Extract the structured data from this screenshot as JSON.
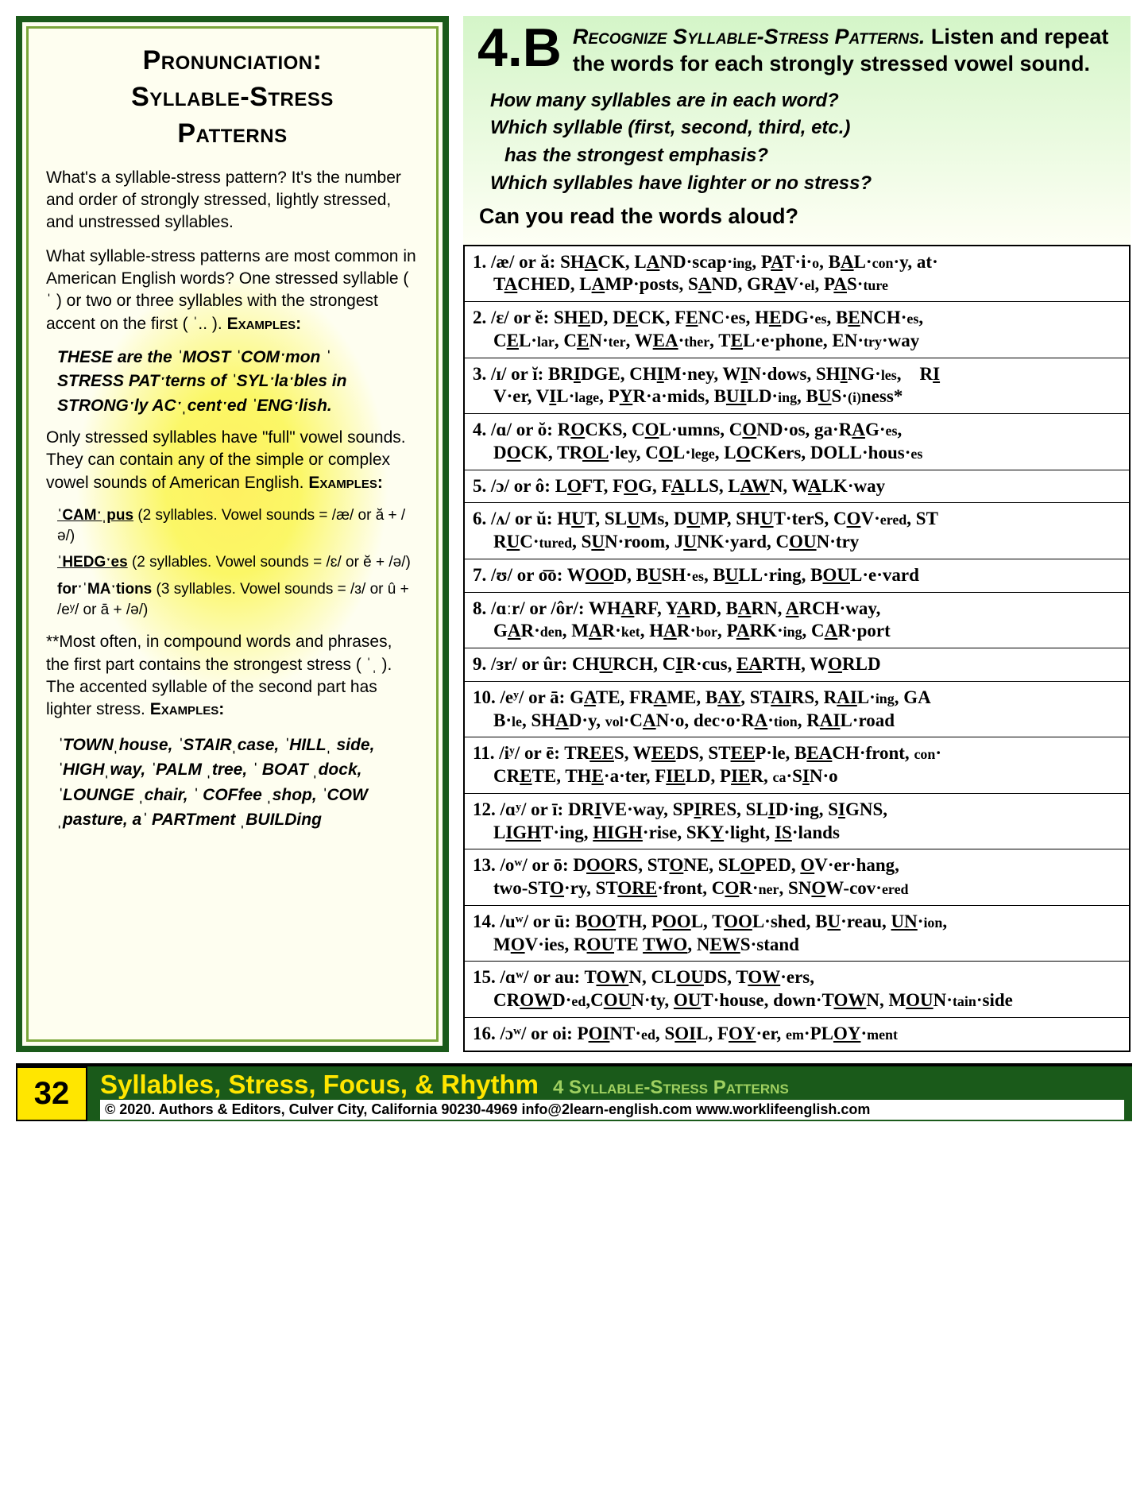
{
  "left": {
    "title_l1": "Pronunciation:",
    "title_l2": "Syllable-Stress",
    "title_l3": "Patterns",
    "p1": "What's a syllable-stress pattern? It's the number and order of strongly stressed, lightly stressed, and unstressed syllables.",
    "p2a": "What syllable-stress patterns are most common in American English words? One stressed syllable ( ˈ ) or two or three syllables with the strongest accent on the first ( ˈ.. ). ",
    "examples_label": "Examples:",
    "ex1": "THESE are the ˈMOST ˈCOMˑmon ˈ",
    "ex2": "STRESS PATˑterns of ˈSYLˑlaˑbles in",
    "ex3": "STRONGˑly ACˑˌcentˑed ˈENGˑlish.",
    "p3a": "Only stressed syllables have \"full\" vowel sounds. They can contain any of the simple or complex vowel sounds of American English. ",
    "sub1a": "ˈCAMˑˌpus",
    "sub1b": "(2 syllables. Vowel sounds = /æ/ or ă + /ə/)",
    "sub2a": "ˈHEDGˑes",
    "sub2b": "(2 syllables. Vowel sounds = /ɛ/ or ĕ + /ə/)",
    "sub3a": "forˑˈMAˑtions",
    "sub3b": "(3 syllables. Vowel sounds = /ɜ/ or û + /eʸ/ or ā + /ə/)",
    "p4a": "**Most often, in compound words and phrases, the first part contains the strongest stress ( ˈˌ ). The accented syllable of the second part has lighter stress. ",
    "ex4": "ˈTOWNˌhouse, ˈSTAIRˌcase, ˈHILLˌ side, ˈHIGHˌway, ˈPALM ˌtree, ˈ BOAT ˌdock, ˈLOUNGE ˌchair, ˈ COFfee ˌshop, ˈCOW ˌpasture, aˈ PARTment ˌBUILDing"
  },
  "right": {
    "section_number": "4.B",
    "instr_sc": "Recognize Syllable-Stress Patterns.",
    "instr_rest": " Listen and repeat the words for each strongly stressed vowel sound.",
    "q1": "How many syllables are in each word?",
    "q2": "Which syllable (first, second, third, etc.)",
    "q2b": "has the strongest emphasis?",
    "q3": "Which syllables have lighter or no stress?",
    "prompt": "Can you read the words aloud?",
    "rows": [
      "1. /æ/ or ă: SH<u>A</u>CK, L<u>A</u>ND·scap·<span class='sm'>ing</span>, P<u>A</u>T·i·<span class='sm'>o</span>, B<u>A</u>L·<span class='sm'>con</span>·y,  at·<span class='ind'>T<u>A</u>CHED, L<u>A</u>MP·posts, S<u>A</u>ND, GR<u>A</u>V·<span class='sm'>el</span>, P<u>A</u>S·<span class='sm'>ture</span></span>",
      "2. /ɛ/ or ĕ: SH<u>E</u>D, D<u>E</u>CK, F<u>E</u>NC·es, H<u>E</u>DG·<span class='sm'>es</span>, B<u>E</u>NCH·<span class='sm'>es</span>,<span class='ind'>C<u>E</u>L·<span class='sm'>lar</span>, C<u>E</u>N·<span class='sm'>ter</span>, W<u>EA</u>·<span class='sm'>ther</span>, T<u>E</u>L·e·phone, EN·<span class='sm'>try</span>·way</span>",
      "3. /ɪ/ or ĭ: BR<u>I</u>DGE, CH<u>I</u>M·ney, W<u>I</u>N·dows, SH<u>I</u>NG·<span class='sm'>les</span>, &nbsp;&nbsp; R<u>I</u><span class='ind'>V·er, V<u>I</u>L·<span class='sm'>lage</span>, P<u>Y</u>R·a·mids, B<u>UI</u>LD·<span class='sm'>ing</span>, B<u>U</u>S·<span class='sm'>(i)</span>ness*</span>",
      "4. /ɑ/ or ŏ: R<u>O</u>CKS, C<u>O</u>L·umns, C<u>O</u>ND·os, ga·R<u>A</u>G·<span class='sm'>es</span>,<span class='ind'>D<u>O</u>CK, TR<u>OL</u>·ley, C<u>O</u>L·<span class='sm'>lege</span>, L<u>O</u>CKers, DOLL·hous·<span class='sm'>es</span></span>",
      "5. /ɔ/ or ô: L<u>O</u>FT, F<u>O</u>G, F<u>A</u>LLS, L<u>AW</u>N, W<u>A</u>LK·way",
      "6. /ʌ/ or ŭ: H<u>U</u>T, SL<u>U</u>Ms, D<u>U</u>MP, SH<u>U</u>T·terS, C<u>O</u>V·<span class='sm'>ered</span>, ST<span class='ind'>R<u>U</u>C·<span class='sm'>tured</span>, S<u>U</u>N·room, J<u>U</u>NK·yard,  C<u>OU</u>N·try</span>",
      "7. /ʊ/ or o͞o: W<u>OO</u>D, B<u>U</u>SH·<span class='sm'>es</span>, B<u>U</u>LL·ring, B<u>OU</u>L·e·vard",
      "8. /ɑːr/ or /ôr/: WH<u>A</u>RF, Y<u>A</u>RD, B<u>A</u>RN,  <u>A</u>RCH·way,<span class='ind'>G<u>A</u>R·<span class='sm'>den</span>, M<u>A</u>R·<span class='sm'>ket</span>, H<u>A</u>R·<span class='sm'>bor</span>,  P<u>A</u>RK·<span class='sm'>ing</span>, C<u>A</u>R·port</span>",
      "9. /ɜr/ or ûr: CH<u>U</u>RCH, C<u>I</u>R·cus, <u>EA</u>RTH, W<u>O</u>RLD",
      "10. /eʸ/ or ā: G<u>A</u>TE, FR<u>A</u>ME, B<u>AY</u>, ST<u>AI</u>RS, R<u>AI</u>L·<span class='sm'>ing</span>, GA<span class='ind'>B·<span class='sm'>le</span>, SH<u>A</u>D·y, <span class='sm'>vol</span>·C<u>A</u>N·o,  dec·o·R<u>A</u>·<span class='sm'>tion</span>, R<u>AI</u>L·road</span>",
      "11. /iʸ/ or ē: TR<u>EE</u>S, W<u>EE</u>DS, ST<u>EE</u>P·le, B<u>EA</u>CH·front, <span class='sm'>con</span>·<span class='ind'>CR<u>E</u>TE, TH<u>E</u>·a·ter, F<u>IE</u>LD, P<u>IE</u>R, <span class='sm'>ca</span>·S<u>I</u>N·o</span>",
      "12. /ɑʸ/ or ī: DR<u>I</u>VE·way, SP<u>I</u>RES, SL<u>I</u>D·ing, S<u>I</u>GNS,<span class='ind'>L<u>IGH</u>T·ing, <u>HIGH</u>·rise,  SK<u>Y</u>·light,  <u>IS</u>·lands</span>",
      "13. /oʷ/ or ō: D<u>OO</u>RS, ST<u>O</u>NE, SL<u>O</u>PED, <u>O</u>V·er·hang,<span class='ind'>two-ST<u>O</u>·ry, ST<u>ORE</u>·front, C<u>O</u>R·<span class='sm'>ner</span>, SN<u>O</u>W-cov·<span class='sm'>ered</span></span>",
      "14. /uʷ/ or ū: B<u>OO</u>TH, P<u>OO</u>L, T<u>OO</u>L·shed, B<u>U</u>·reau, <u>UN</u>·<span class='sm'>ion</span>,<span class='ind'>M<u>O</u>V·ies, R<u>OU</u>TE <u>TWO</u>, N<u>EW</u>S·stand</span>",
      "15. /ɑʷ/ or au: T<u>OW</u>N, CL<u>OU</u>DS, T<u>OW</u>·ers,<span class='ind'>CR<u>OW</u>D·<span class='sm'>ed</span>,C<u>OU</u>N·ty, <u>OU</u>T·house, down·T<u>OW</u>N, M<u>OU</u>N·<span class='sm'>tain</span>·side</span>",
      "16. /ɔʷ/ or oi: P<u>OI</u>NT·<span class='sm'>ed</span>, S<u>OI</u>L, F<u>OY</u>·er, <span class='sm'>em</span>·PL<u>OY</u>·<span class='sm'>ment</span>"
    ]
  },
  "footer": {
    "page": "32",
    "title": "Syllables, Stress, Focus, & Rhythm",
    "sub": "4 Syllable-Stress Patterns",
    "copy": "© 2020. Authors & Editors, Culver City, California 90230-4969  info@2learn-english.com  www.worklifeenglish.com"
  }
}
